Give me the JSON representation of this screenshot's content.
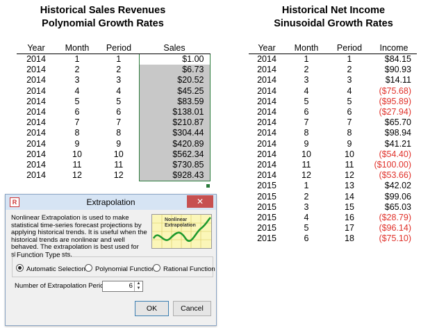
{
  "left_title": {
    "line1": "Historical Sales Revenues",
    "line2": "Polynomial Growth Rates"
  },
  "right_title": {
    "line1": "Historical Net Income",
    "line2": "Sinusoidal Growth Rates"
  },
  "sales_table": {
    "headers": [
      "Year",
      "Month",
      "Period",
      "Sales"
    ],
    "rows": [
      [
        "2014",
        "1",
        "1",
        "$1.00"
      ],
      [
        "2014",
        "2",
        "2",
        "$6.73"
      ],
      [
        "2014",
        "3",
        "3",
        "$20.52"
      ],
      [
        "2014",
        "4",
        "4",
        "$45.25"
      ],
      [
        "2014",
        "5",
        "5",
        "$83.59"
      ],
      [
        "2014",
        "6",
        "6",
        "$138.01"
      ],
      [
        "2014",
        "7",
        "7",
        "$210.87"
      ],
      [
        "2014",
        "8",
        "8",
        "$304.44"
      ],
      [
        "2014",
        "9",
        "9",
        "$420.89"
      ],
      [
        "2014",
        "10",
        "10",
        "$562.34"
      ],
      [
        "2014",
        "11",
        "11",
        "$730.85"
      ],
      [
        "2014",
        "12",
        "12",
        "$928.43"
      ]
    ]
  },
  "income_table": {
    "headers": [
      "Year",
      "Month",
      "Period",
      "Income"
    ],
    "rows": [
      [
        "2014",
        "1",
        "1",
        "$84.15"
      ],
      [
        "2014",
        "2",
        "2",
        "$90.93"
      ],
      [
        "2014",
        "3",
        "3",
        "$14.11"
      ],
      [
        "2014",
        "4",
        "4",
        "($75.68)"
      ],
      [
        "2014",
        "5",
        "5",
        "($95.89)"
      ],
      [
        "2014",
        "6",
        "6",
        "($27.94)"
      ],
      [
        "2014",
        "7",
        "7",
        "$65.70"
      ],
      [
        "2014",
        "8",
        "8",
        "$98.94"
      ],
      [
        "2014",
        "9",
        "9",
        "$41.21"
      ],
      [
        "2014",
        "10",
        "10",
        "($54.40)"
      ],
      [
        "2014",
        "11",
        "11",
        "($100.00)"
      ],
      [
        "2014",
        "12",
        "12",
        "($53.66)"
      ],
      [
        "2015",
        "1",
        "13",
        "$42.02"
      ],
      [
        "2015",
        "2",
        "14",
        "$99.06"
      ],
      [
        "2015",
        "3",
        "15",
        "$65.03"
      ],
      [
        "2015",
        "4",
        "16",
        "($28.79)"
      ],
      [
        "2015",
        "5",
        "17",
        "($96.14)"
      ],
      [
        "2015",
        "6",
        "18",
        "($75.10)"
      ]
    ]
  },
  "dialog": {
    "title": "Extrapolation",
    "close_glyph": "✕",
    "description": "Nonlinear Extrapolation is used to make statistical time-series forecast projections by applying historical trends. It is useful when the historical trends are nonlinear and well behaved. The extrapolation is best used for short-term forecasts.",
    "preview_label": "Nonlinear Extrapolation",
    "function_type_label": "Function Type",
    "options": [
      "Automatic Selection",
      "Polynomial Function",
      "Rational Function"
    ],
    "selected_option": "Automatic Selection",
    "periods_label": "Number of Extrapolation Periods",
    "periods_value": "6",
    "ok_label": "OK",
    "cancel_label": "Cancel"
  },
  "colors": {
    "negative": "#e0312a",
    "selection_border": "#2a7a3b",
    "selection_fill": "#c8c8c8"
  }
}
